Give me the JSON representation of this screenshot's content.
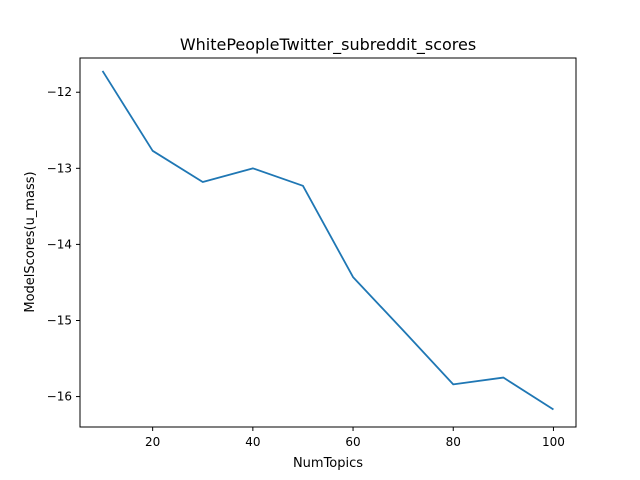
{
  "chart_data": {
    "type": "line",
    "title": "WhitePeopleTwitter_subreddit_scores",
    "xlabel": "NumTopics",
    "ylabel": "ModelScores(u_mass)",
    "xlim": [
      5.5,
      104.5
    ],
    "ylim": [
      -16.4,
      -11.55
    ],
    "xticks": [
      20,
      40,
      60,
      80,
      100
    ],
    "yticks": [
      -12,
      -13,
      -14,
      -15,
      -16
    ],
    "xtick_labels": [
      "20",
      "40",
      "60",
      "80",
      "100"
    ],
    "ytick_labels": [
      "−12",
      "−13",
      "−14",
      "−15",
      "−16"
    ],
    "grid": false,
    "legend": "none",
    "series": [
      {
        "color": "#1f77b4",
        "x": [
          10,
          20,
          30,
          40,
          50,
          60,
          70,
          80,
          90,
          100
        ],
        "y": [
          -11.72,
          -12.77,
          -13.18,
          -13.0,
          -13.23,
          -14.43,
          -15.13,
          -15.84,
          -15.75,
          -16.17
        ]
      }
    ]
  }
}
